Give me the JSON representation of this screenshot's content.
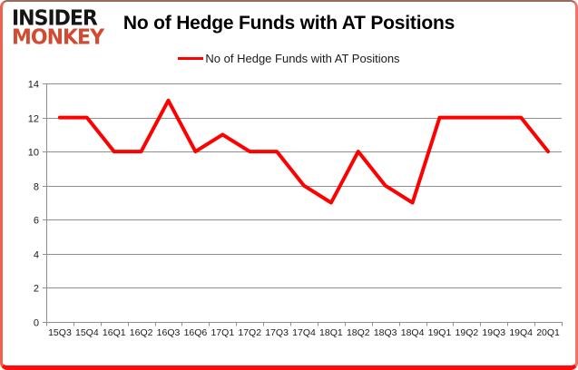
{
  "brand": {
    "line1": "INSIDER",
    "line2": "MONKEY",
    "accent_color": "#d14b32"
  },
  "title": "No of Hedge Funds with AT Positions",
  "legend": {
    "label": "No of Hedge Funds with AT Positions",
    "color": "#ff0000"
  },
  "chart_data": {
    "type": "line",
    "title": "No of Hedge Funds with AT Positions",
    "categories": [
      "15Q3",
      "15Q4",
      "16Q1",
      "16Q2",
      "16Q3",
      "16Q6",
      "17Q1",
      "17Q2",
      "17Q3",
      "17Q4",
      "18Q1",
      "18Q2",
      "18Q3",
      "18Q4",
      "19Q1",
      "19Q2",
      "19Q3",
      "19Q4",
      "20Q1"
    ],
    "series": [
      {
        "name": "No of Hedge Funds with AT Positions",
        "color": "#ff0000",
        "values": [
          12,
          12,
          10,
          10,
          13,
          10,
          11,
          10,
          10,
          8,
          7,
          10,
          8,
          7,
          12,
          12,
          12,
          12,
          10
        ]
      }
    ],
    "xlabel": "",
    "ylabel": "",
    "ylim": [
      0,
      14
    ],
    "ytick_step": 2,
    "yticks": [
      0,
      2,
      4,
      6,
      8,
      10,
      12,
      14
    ],
    "grid": true,
    "legend_position": "top-center",
    "colors": {
      "grid": "#8f8f8f",
      "axis": "#8f8f8f",
      "text": "#1a1a1a",
      "background": "#ffffff"
    }
  }
}
